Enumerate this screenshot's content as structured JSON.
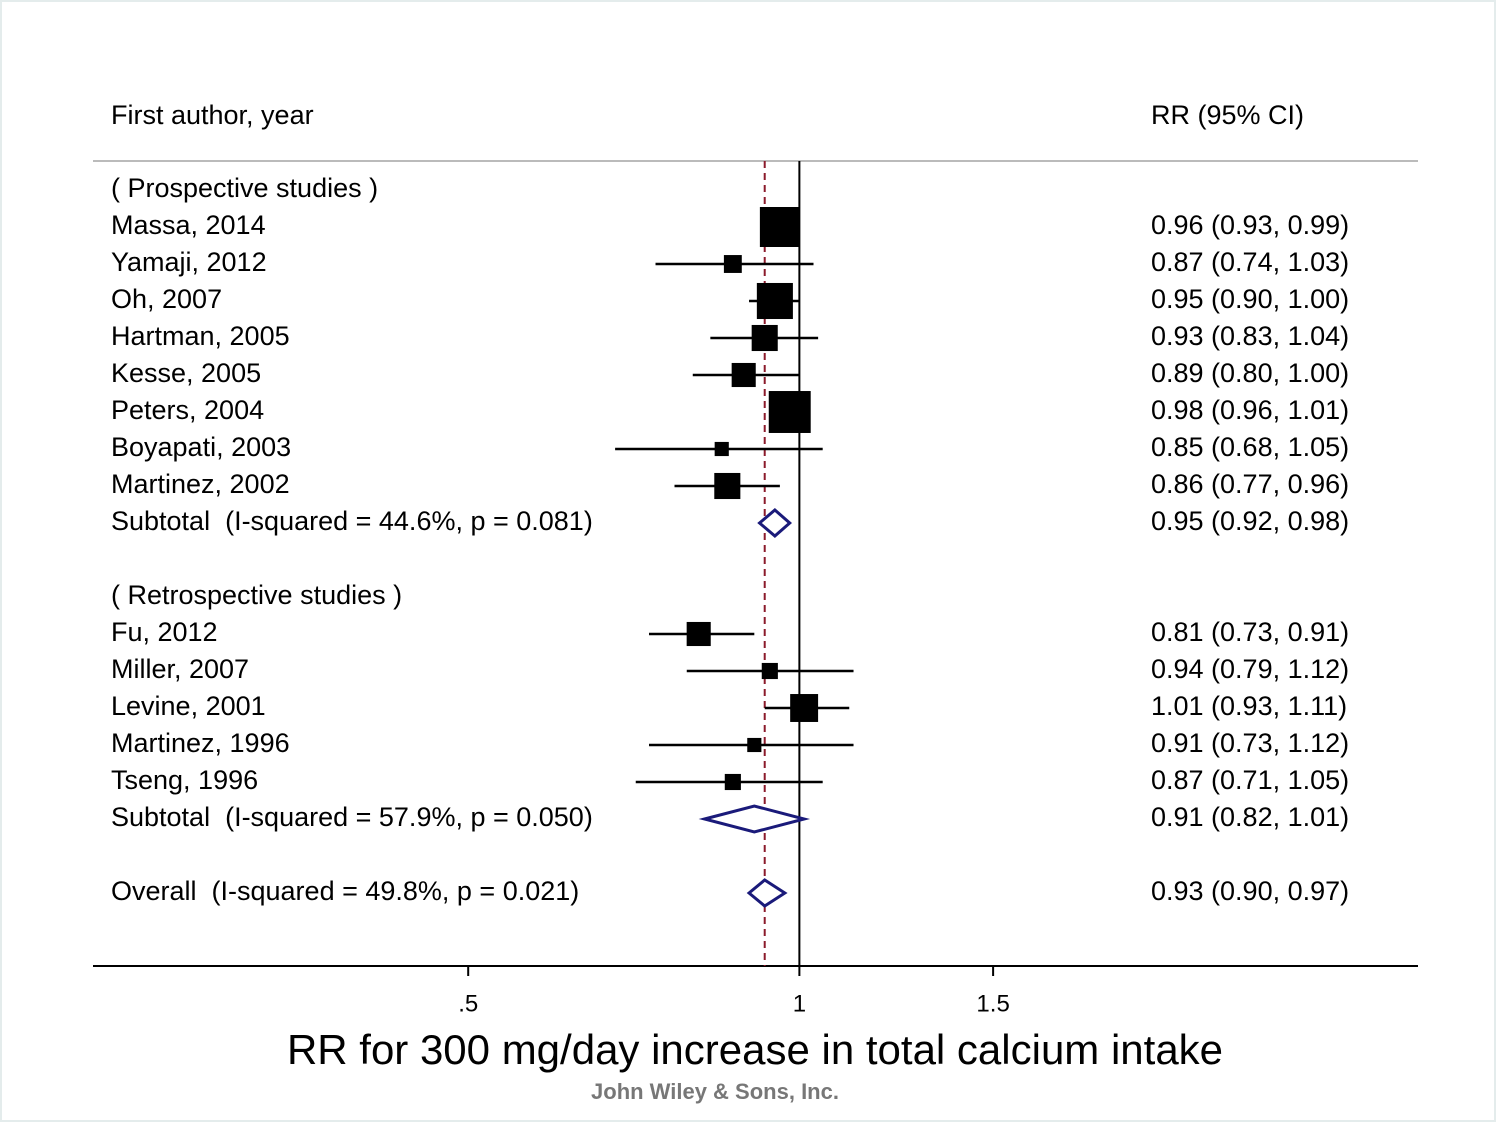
{
  "chart_data": {
    "type": "forest",
    "column_headers": [
      "First author, year",
      "RR (95% CI)"
    ],
    "groups": [
      {
        "name": "( Prospective studies )",
        "studies": [
          {
            "label": "Massa, 2014",
            "estimate": 0.96,
            "lower": 0.93,
            "upper": 0.99,
            "weight": 16,
            "ci_label": "0.96 (0.93, 0.99)"
          },
          {
            "label": "Yamaji, 2012",
            "estimate": 0.87,
            "lower": 0.74,
            "upper": 1.03,
            "weight": 3.2,
            "ci_label": "0.87 (0.74, 1.03)"
          },
          {
            "label": "Oh, 2007",
            "estimate": 0.95,
            "lower": 0.9,
            "upper": 1.0,
            "weight": 13,
            "ci_label": "0.95 (0.90, 1.00)"
          },
          {
            "label": "Hartman, 2005",
            "estimate": 0.93,
            "lower": 0.83,
            "upper": 1.04,
            "weight": 6.8,
            "ci_label": "0.93 (0.83, 1.04)"
          },
          {
            "label": "Kesse, 2005",
            "estimate": 0.89,
            "lower": 0.8,
            "upper": 1.0,
            "weight": 5.8,
            "ci_label": "0.89 (0.80, 1.00)"
          },
          {
            "label": "Peters, 2004",
            "estimate": 0.98,
            "lower": 0.96,
            "upper": 1.01,
            "weight": 17.6,
            "ci_label": "0.98 (0.96, 1.01)"
          },
          {
            "label": "Boyapati, 2003",
            "estimate": 0.85,
            "lower": 0.68,
            "upper": 1.05,
            "weight": 2,
            "ci_label": "0.85 (0.68, 1.05)"
          },
          {
            "label": "Martinez, 2002",
            "estimate": 0.86,
            "lower": 0.77,
            "upper": 0.96,
            "weight": 6.8,
            "ci_label": "0.86 (0.77, 0.96)"
          }
        ],
        "subtotal": {
          "label": "Subtotal  (I-squared = 44.6%, p = 0.081)",
          "estimate": 0.95,
          "lower": 0.92,
          "upper": 0.98,
          "ci_label": "0.95 (0.92, 0.98)"
        }
      },
      {
        "name": "( Retrospective studies )",
        "studies": [
          {
            "label": "Fu, 2012",
            "estimate": 0.81,
            "lower": 0.73,
            "upper": 0.91,
            "weight": 5.8,
            "ci_label": "0.81 (0.73, 0.91)"
          },
          {
            "label": "Miller, 2007",
            "estimate": 0.94,
            "lower": 0.79,
            "upper": 1.12,
            "weight": 2.6,
            "ci_label": "0.94 (0.79, 1.12)"
          },
          {
            "label": "Levine, 2001",
            "estimate": 1.01,
            "lower": 0.93,
            "upper": 1.11,
            "weight": 7.8,
            "ci_label": "1.01 (0.93, 1.11)"
          },
          {
            "label": "Martinez, 1996",
            "estimate": 0.91,
            "lower": 0.73,
            "upper": 1.12,
            "weight": 2,
            "ci_label": "0.91 (0.73, 1.12)"
          },
          {
            "label": "Tseng, 1996",
            "estimate": 0.87,
            "lower": 0.71,
            "upper": 1.05,
            "weight": 2.6,
            "ci_label": "0.87 (0.71, 1.05)"
          }
        ],
        "subtotal": {
          "label": "Subtotal  (I-squared = 57.9%, p = 0.050)",
          "estimate": 0.91,
          "lower": 0.82,
          "upper": 1.01,
          "ci_label": "0.91 (0.82, 1.01)"
        }
      }
    ],
    "overall": {
      "label": "Overall  (I-squared = 49.8%, p = 0.021)",
      "estimate": 0.93,
      "lower": 0.9,
      "upper": 0.97,
      "ci_label": "0.93 (0.90, 0.97)"
    },
    "xlabel": "RR for 300 mg/day increase in total calcium intake",
    "source": "John Wiley & Sons, Inc.",
    "log_scale": true,
    "xlim": [
      0.228,
      3.65
    ],
    "xticks": [
      {
        "value": 0.5,
        "label": ".5"
      },
      1,
      1.5
    ],
    "reference_line": 1,
    "marker_color": "#000000",
    "diamond_color": "#1a1a7a",
    "overall_line_color": "#8b1a2b"
  }
}
